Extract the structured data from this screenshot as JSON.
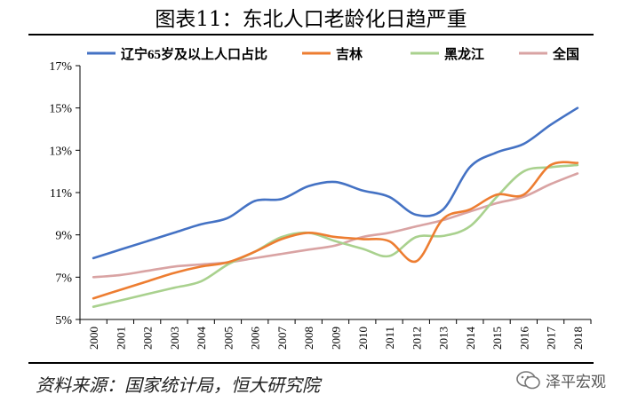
{
  "title": "图表11：东北人口老龄化日趋严重",
  "source": "资料来源：国家统计局，恒大研究院",
  "watermark": "泽平宏观",
  "chart_data": {
    "type": "line",
    "title": "图表11：东北人口老龄化日趋严重",
    "xlabel": "",
    "ylabel": "",
    "x": [
      "2000",
      "2001",
      "2002",
      "2003",
      "2004",
      "2005",
      "2006",
      "2007",
      "2008",
      "2009",
      "2010",
      "2011",
      "2012",
      "2013",
      "2014",
      "2015",
      "2016",
      "2017",
      "2018"
    ],
    "ylim": [
      5,
      17
    ],
    "yticks": [
      5,
      7,
      9,
      11,
      13,
      15,
      17
    ],
    "ytick_labels": [
      "5%",
      "7%",
      "9%",
      "11%",
      "13%",
      "15%",
      "17%"
    ],
    "grid": false,
    "legend_position": "top",
    "series": [
      {
        "name": "辽宁65岁及以上人口占比",
        "color": "#4472C4",
        "values": [
          7.9,
          8.3,
          8.7,
          9.1,
          9.5,
          9.8,
          10.6,
          10.7,
          11.3,
          11.5,
          11.1,
          10.8,
          9.95,
          10.2,
          12.2,
          12.9,
          13.3,
          14.2,
          15.0
        ]
      },
      {
        "name": "吉林",
        "color": "#ED7D31",
        "values": [
          6.0,
          6.4,
          6.8,
          7.2,
          7.5,
          7.7,
          8.2,
          8.8,
          9.1,
          8.9,
          8.8,
          8.7,
          7.75,
          9.75,
          10.2,
          10.9,
          10.9,
          12.3,
          12.4
        ]
      },
      {
        "name": "黑龙江",
        "color": "#A9D18E",
        "values": [
          5.6,
          5.9,
          6.2,
          6.5,
          6.8,
          7.6,
          8.2,
          8.9,
          9.1,
          8.7,
          8.35,
          8.0,
          8.9,
          8.95,
          9.4,
          10.8,
          12.0,
          12.2,
          12.3
        ]
      },
      {
        "name": "全国",
        "color": "#D9A3A3",
        "values": [
          7.0,
          7.1,
          7.3,
          7.5,
          7.6,
          7.7,
          7.9,
          8.1,
          8.3,
          8.5,
          8.9,
          9.1,
          9.4,
          9.7,
          10.1,
          10.5,
          10.8,
          11.4,
          11.9
        ]
      }
    ]
  }
}
